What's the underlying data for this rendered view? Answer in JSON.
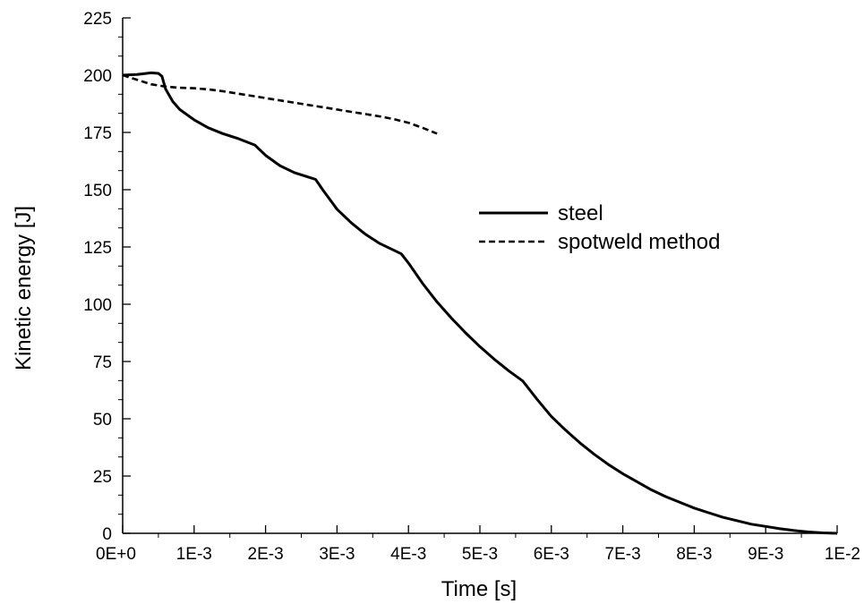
{
  "chart_data": {
    "type": "line",
    "title": "",
    "xlabel": "Time [s]",
    "ylabel": "Kinetic energy [J]",
    "xlim": [
      0,
      0.01
    ],
    "ylim": [
      0,
      225
    ],
    "grid": false,
    "legend_position": "right-middle",
    "x_ticks": [
      {
        "value": 0,
        "label": "0E+0"
      },
      {
        "value": 0.001,
        "label": "1E-3"
      },
      {
        "value": 0.002,
        "label": "2E-3"
      },
      {
        "value": 0.003,
        "label": "3E-3"
      },
      {
        "value": 0.004,
        "label": "4E-3"
      },
      {
        "value": 0.005,
        "label": "5E-3"
      },
      {
        "value": 0.006,
        "label": "6E-3"
      },
      {
        "value": 0.007,
        "label": "7E-3"
      },
      {
        "value": 0.008,
        "label": "8E-3"
      },
      {
        "value": 0.009,
        "label": "9E-3"
      },
      {
        "value": 0.01,
        "label": "1E-2"
      }
    ],
    "y_ticks": [
      {
        "value": 0,
        "label": "0"
      },
      {
        "value": 25,
        "label": "25"
      },
      {
        "value": 50,
        "label": "50"
      },
      {
        "value": 75,
        "label": "75"
      },
      {
        "value": 100,
        "label": "100"
      },
      {
        "value": 125,
        "label": "125"
      },
      {
        "value": 150,
        "label": "150"
      },
      {
        "value": 175,
        "label": "175"
      },
      {
        "value": 200,
        "label": "200"
      },
      {
        "value": 225,
        "label": "225"
      }
    ],
    "series": [
      {
        "name": "steel",
        "style": "solid",
        "color": "#000000",
        "points": [
          [
            0,
            200
          ],
          [
            0.0002,
            200.3
          ],
          [
            0.0004,
            201
          ],
          [
            0.0005,
            200.8
          ],
          [
            0.00055,
            199.5
          ],
          [
            0.0006,
            194
          ],
          [
            0.0007,
            188.5
          ],
          [
            0.0008,
            185
          ],
          [
            0.001,
            180.5
          ],
          [
            0.0012,
            177
          ],
          [
            0.0014,
            174.5
          ],
          [
            0.0016,
            172.5
          ],
          [
            0.00185,
            169.5
          ],
          [
            0.002,
            165
          ],
          [
            0.0022,
            160.5
          ],
          [
            0.0024,
            157.5
          ],
          [
            0.0026,
            155.5
          ],
          [
            0.0027,
            154.5
          ],
          [
            0.0028,
            150
          ],
          [
            0.003,
            141.5
          ],
          [
            0.0032,
            135.5
          ],
          [
            0.0034,
            130.5
          ],
          [
            0.0036,
            126.5
          ],
          [
            0.0038,
            123.5
          ],
          [
            0.0039,
            122
          ],
          [
            0.004,
            118
          ],
          [
            0.0042,
            109
          ],
          [
            0.0044,
            101
          ],
          [
            0.0046,
            94
          ],
          [
            0.0048,
            87.5
          ],
          [
            0.005,
            81.5
          ],
          [
            0.0052,
            76
          ],
          [
            0.0054,
            71
          ],
          [
            0.0056,
            66.5
          ],
          [
            0.0058,
            58.5
          ],
          [
            0.006,
            51
          ],
          [
            0.0062,
            45
          ],
          [
            0.0064,
            39.5
          ],
          [
            0.0066,
            34.5
          ],
          [
            0.0068,
            30
          ],
          [
            0.007,
            26
          ],
          [
            0.0072,
            22.5
          ],
          [
            0.0074,
            19
          ],
          [
            0.0076,
            16
          ],
          [
            0.0078,
            13.5
          ],
          [
            0.008,
            11
          ],
          [
            0.0082,
            9
          ],
          [
            0.0084,
            7
          ],
          [
            0.0086,
            5.5
          ],
          [
            0.0088,
            4
          ],
          [
            0.009,
            3
          ],
          [
            0.0092,
            2
          ],
          [
            0.0094,
            1.2
          ],
          [
            0.0096,
            0.6
          ],
          [
            0.0098,
            0.2
          ],
          [
            0.01,
            0
          ]
        ]
      },
      {
        "name": "spotweld method",
        "style": "dashed",
        "color": "#000000",
        "points": [
          [
            0,
            200
          ],
          [
            0.0002,
            198
          ],
          [
            0.0004,
            196
          ],
          [
            0.0006,
            195
          ],
          [
            0.0008,
            194.5
          ],
          [
            0.001,
            194.3
          ],
          [
            0.0012,
            193.8
          ],
          [
            0.0014,
            193
          ],
          [
            0.0016,
            192
          ],
          [
            0.0018,
            191
          ],
          [
            0.002,
            190
          ],
          [
            0.0022,
            189
          ],
          [
            0.0024,
            188
          ],
          [
            0.0026,
            187
          ],
          [
            0.0028,
            186
          ],
          [
            0.003,
            185
          ],
          [
            0.0032,
            184
          ],
          [
            0.0034,
            183
          ],
          [
            0.0036,
            182
          ],
          [
            0.0038,
            180.8
          ],
          [
            0.004,
            179.2
          ],
          [
            0.0042,
            177
          ],
          [
            0.0044,
            174.5
          ]
        ]
      }
    ]
  }
}
